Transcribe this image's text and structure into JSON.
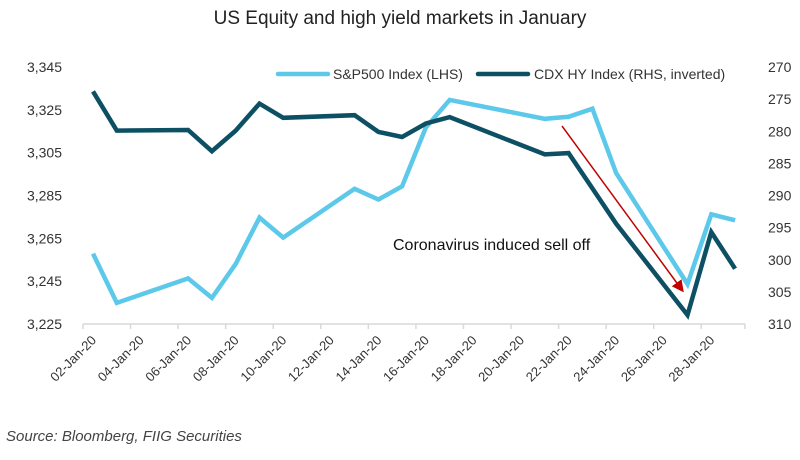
{
  "chart_data": {
    "type": "line",
    "title": "US Equity and high yield markets in January",
    "source": "Source: Bloomberg, FIIG Securities",
    "annotation": "Coronavirus induced sell off",
    "x_tick_labels": [
      "02-Jan-20",
      "04-Jan-20",
      "06-Jan-20",
      "08-Jan-20",
      "10-Jan-20",
      "12-Jan-20",
      "14-Jan-20",
      "16-Jan-20",
      "18-Jan-20",
      "20-Jan-20",
      "22-Jan-20",
      "24-Jan-20",
      "26-Jan-20",
      "28-Jan-20"
    ],
    "y_left": {
      "ticks": [
        "3,345",
        "3,325",
        "3,305",
        "3,285",
        "3,265",
        "3,245",
        "3,225"
      ],
      "range": [
        3225,
        3345
      ]
    },
    "y_right": {
      "ticks": [
        "270",
        "275",
        "280",
        "285",
        "290",
        "295",
        "300",
        "305",
        "310"
      ],
      "range": [
        270,
        310
      ],
      "inverted": true
    },
    "legend_position": "top-right",
    "grid": false,
    "x_days": [
      2,
      3,
      6,
      7,
      8,
      9,
      10,
      13,
      14,
      15,
      16,
      17,
      21,
      22,
      23,
      24,
      27,
      28,
      29
    ],
    "series": [
      {
        "name": "S&P500 Index (LHS)",
        "axis": "left",
        "color": "#5cc8ea",
        "values": [
          3257.85,
          3234.85,
          3246.28,
          3237.18,
          3253.05,
          3274.7,
          3265.35,
          3288.13,
          3283.15,
          3289.29,
          3316.81,
          3329.62,
          3320.79,
          3321.75,
          3325.54,
          3295.47,
          3243.63,
          3276.24,
          3273.4
        ]
      },
      {
        "name": "CDX HY Index (RHS, inverted)",
        "axis": "right",
        "color": "#0d4f63",
        "values": [
          273.8,
          279.9,
          279.8,
          283.1,
          279.9,
          275.7,
          277.9,
          277.5,
          280.1,
          280.9,
          278.8,
          277.8,
          283.6,
          283.4,
          288.9,
          294.4,
          308.6,
          295.7,
          301.4
        ]
      }
    ],
    "arrow_color": "#c00000"
  }
}
